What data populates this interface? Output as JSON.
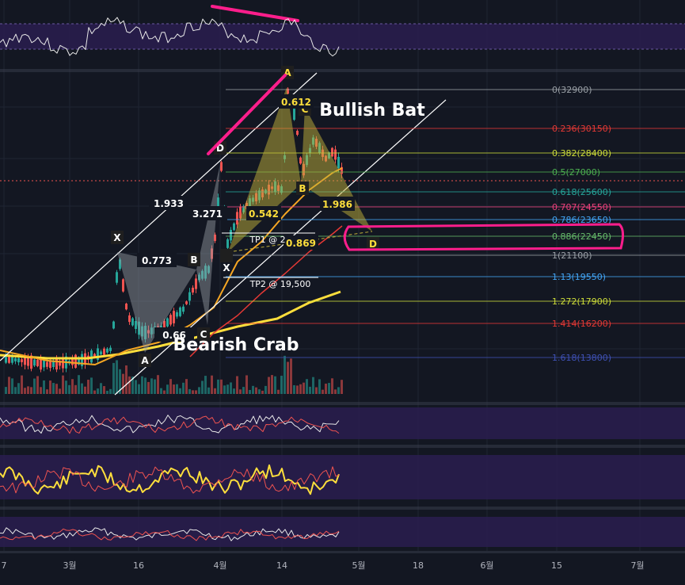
{
  "colors": {
    "background": "#131722",
    "panel": "#2a1d4f",
    "grid": "#1f2433",
    "up": "#26a69a",
    "down": "#ef5350",
    "ma_orange": "#f5a623",
    "ma_yellow": "#fdde3c",
    "ma_red": "#e53935",
    "annotation_pink": "#ff1e8c",
    "trendline": "#ffffff",
    "bat_fill": "#c2b13a",
    "crab_fill": "#9aa0a6"
  },
  "chart_data": {
    "type": "candlestick-annotated",
    "pattern_labels": {
      "bullish": "Bullish Bat",
      "bearish": "Bearish Crab"
    },
    "fib_levels": [
      {
        "ratio": "0",
        "price": "32900",
        "color": "#9aa0a6"
      },
      {
        "ratio": "0.236",
        "price": "30150",
        "color": "#e53935"
      },
      {
        "ratio": "0.382",
        "price": "28400",
        "color": "#cddc39"
      },
      {
        "ratio": "0.5",
        "price": "27000",
        "color": "#4caf50"
      },
      {
        "ratio": "0.618",
        "price": "25600",
        "color": "#26a69a"
      },
      {
        "ratio": "0.707",
        "price": "24550",
        "color": "#ec407a"
      },
      {
        "ratio": "0.786",
        "price": "23650",
        "color": "#42a5f5"
      },
      {
        "ratio": "0.886",
        "price": "22450",
        "color": "#66bb6a"
      },
      {
        "ratio": "1",
        "price": "21100",
        "color": "#9aa0a6"
      },
      {
        "ratio": "1.13",
        "price": "19550",
        "color": "#42a5f5"
      },
      {
        "ratio": "1.272",
        "price": "17900",
        "color": "#cddc39"
      },
      {
        "ratio": "1.414",
        "price": "16200",
        "color": "#e53935"
      },
      {
        "ratio": "1.618",
        "price": "13800",
        "color": "#3f51b5"
      }
    ],
    "crab_points": [
      "X",
      "A",
      "B",
      "C",
      "D"
    ],
    "crab_ratios": [
      "0.773",
      "1.933",
      "0.66",
      "3.271"
    ],
    "bat_points": [
      "A",
      "B",
      "C",
      "D"
    ],
    "bat_ratios": [
      "0.612",
      "0.542",
      "1.986",
      "0.869"
    ],
    "targets": [
      "TP1 @ 2",
      "TP2 @ 19,500"
    ],
    "x_ticks": [
      "7",
      "3월",
      "16",
      "4월",
      "14",
      "5월",
      "18",
      "6월",
      "15",
      "7월"
    ]
  }
}
